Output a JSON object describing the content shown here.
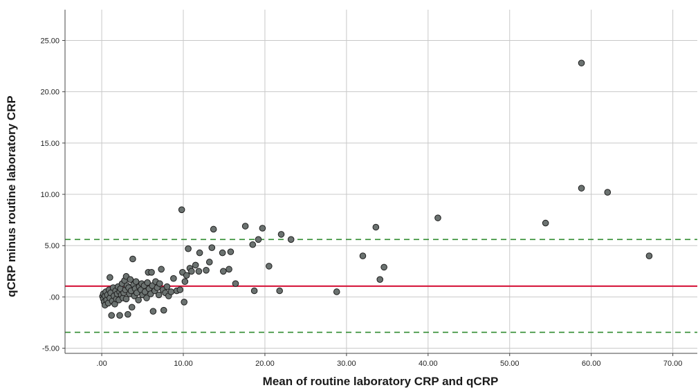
{
  "chart_data": {
    "type": "scatter",
    "title": "",
    "xlabel": "Mean of routine laboratory CRP and qCRP",
    "ylabel": "qCRP minus routine laboratory CRP",
    "xlim": [
      -4.5,
      73
    ],
    "ylim": [
      -5.5,
      28
    ],
    "x_ticks": [
      0,
      10,
      20,
      30,
      40,
      50,
      60,
      70
    ],
    "x_tick_labels": [
      ".00",
      "10.00",
      "20.00",
      "30.00",
      "40.00",
      "50.00",
      "60.00",
      "70.00"
    ],
    "y_ticks": [
      -5,
      0,
      5,
      10,
      15,
      20,
      25
    ],
    "y_tick_labels": [
      "-5.00",
      ".00",
      "5.00",
      "10.00",
      "15.00",
      "20.00",
      "25.00"
    ],
    "grid": true,
    "reference_lines": [
      {
        "name": "mean difference",
        "y": 1.05,
        "style": "solid",
        "color": "#d6163a"
      },
      {
        "name": "upper limit of agreement",
        "y": 5.6,
        "style": "dashed",
        "color": "#2e8b2e"
      },
      {
        "name": "lower limit of agreement",
        "y": -3.45,
        "style": "dashed",
        "color": "#2e8b2e"
      }
    ],
    "marker_color": "#6b7270",
    "series": [
      {
        "points": [
          [
            0.1,
            0.05
          ],
          [
            0.2,
            -0.2
          ],
          [
            0.2,
            0.3
          ],
          [
            0.3,
            -0.5
          ],
          [
            0.4,
            0.1
          ],
          [
            0.4,
            -0.8
          ],
          [
            0.5,
            0.5
          ],
          [
            0.6,
            -0.3
          ],
          [
            0.7,
            0.2
          ],
          [
            0.8,
            -0.6
          ],
          [
            0.9,
            0.7
          ],
          [
            1.0,
            -0.1
          ],
          [
            1.0,
            1.9
          ],
          [
            1.1,
            0.4
          ],
          [
            1.2,
            -1.8
          ],
          [
            1.3,
            -0.4
          ],
          [
            1.4,
            0.9
          ],
          [
            1.5,
            0.1
          ],
          [
            1.6,
            -0.7
          ],
          [
            1.7,
            0.6
          ],
          [
            1.8,
            -0.2
          ],
          [
            1.9,
            0.3
          ],
          [
            2.0,
            1.0
          ],
          [
            2.1,
            -0.3
          ],
          [
            2.2,
            0.5
          ],
          [
            2.2,
            -1.8
          ],
          [
            2.3,
            0.8
          ],
          [
            2.4,
            0.2
          ],
          [
            2.5,
            1.3
          ],
          [
            2.6,
            -0.1
          ],
          [
            2.7,
            0.4
          ],
          [
            2.8,
            1.6
          ],
          [
            2.9,
            0.7
          ],
          [
            3.0,
            -0.2
          ],
          [
            3.0,
            2.0
          ],
          [
            3.1,
            1.1
          ],
          [
            3.2,
            -1.7
          ],
          [
            3.3,
            0.9
          ],
          [
            3.4,
            0.3
          ],
          [
            3.5,
            1.7
          ],
          [
            3.6,
            0.6
          ],
          [
            3.7,
            -1.0
          ],
          [
            3.8,
            3.7
          ],
          [
            3.9,
            1.2
          ],
          [
            4.0,
            0.1
          ],
          [
            4.1,
            0.8
          ],
          [
            4.2,
            1.5
          ],
          [
            4.3,
            0.4
          ],
          [
            4.5,
            -0.3
          ],
          [
            4.6,
            1.0
          ],
          [
            4.8,
            0.7
          ],
          [
            4.9,
            1.3
          ],
          [
            5.0,
            0.2
          ],
          [
            5.2,
            1.1
          ],
          [
            5.3,
            0.5
          ],
          [
            5.5,
            -0.1
          ],
          [
            5.6,
            1.4
          ],
          [
            5.7,
            2.4
          ],
          [
            5.8,
            0.8
          ],
          [
            6.0,
            0.3
          ],
          [
            6.1,
            2.4
          ],
          [
            6.2,
            1.1
          ],
          [
            6.3,
            -1.4
          ],
          [
            6.5,
            0.6
          ],
          [
            6.6,
            1.5
          ],
          [
            6.8,
            0.9
          ],
          [
            7.0,
            0.2
          ],
          [
            7.1,
            1.3
          ],
          [
            7.3,
            2.7
          ],
          [
            7.5,
            0.7
          ],
          [
            7.6,
            -1.3
          ],
          [
            7.8,
            0.4
          ],
          [
            8.0,
            1.0
          ],
          [
            8.2,
            0.1
          ],
          [
            8.5,
            0.5
          ],
          [
            8.8,
            1.8
          ],
          [
            9.2,
            0.6
          ],
          [
            9.6,
            0.7
          ],
          [
            9.8,
            8.5
          ],
          [
            9.9,
            2.4
          ],
          [
            10.1,
            -0.5
          ],
          [
            10.2,
            1.5
          ],
          [
            10.4,
            2.1
          ],
          [
            10.6,
            4.7
          ],
          [
            10.8,
            2.8
          ],
          [
            11.0,
            2.5
          ],
          [
            11.5,
            3.1
          ],
          [
            11.9,
            2.5
          ],
          [
            12.0,
            4.3
          ],
          [
            12.8,
            2.6
          ],
          [
            13.2,
            3.4
          ],
          [
            13.5,
            4.8
          ],
          [
            13.7,
            6.6
          ],
          [
            14.8,
            4.3
          ],
          [
            14.9,
            2.5
          ],
          [
            15.6,
            2.7
          ],
          [
            15.8,
            4.4
          ],
          [
            16.4,
            1.3
          ],
          [
            17.6,
            6.9
          ],
          [
            18.5,
            5.1
          ],
          [
            18.7,
            0.6
          ],
          [
            19.2,
            5.6
          ],
          [
            19.7,
            6.7
          ],
          [
            20.5,
            3.0
          ],
          [
            21.8,
            0.6
          ],
          [
            22.0,
            6.1
          ],
          [
            23.2,
            5.6
          ],
          [
            28.8,
            0.5
          ],
          [
            32.0,
            4.0
          ],
          [
            33.6,
            6.8
          ],
          [
            34.1,
            1.7
          ],
          [
            34.6,
            2.9
          ],
          [
            41.2,
            7.7
          ],
          [
            54.4,
            7.2
          ],
          [
            58.8,
            22.8
          ],
          [
            58.8,
            10.6
          ],
          [
            62.0,
            10.2
          ],
          [
            67.1,
            4.0
          ]
        ]
      }
    ]
  }
}
